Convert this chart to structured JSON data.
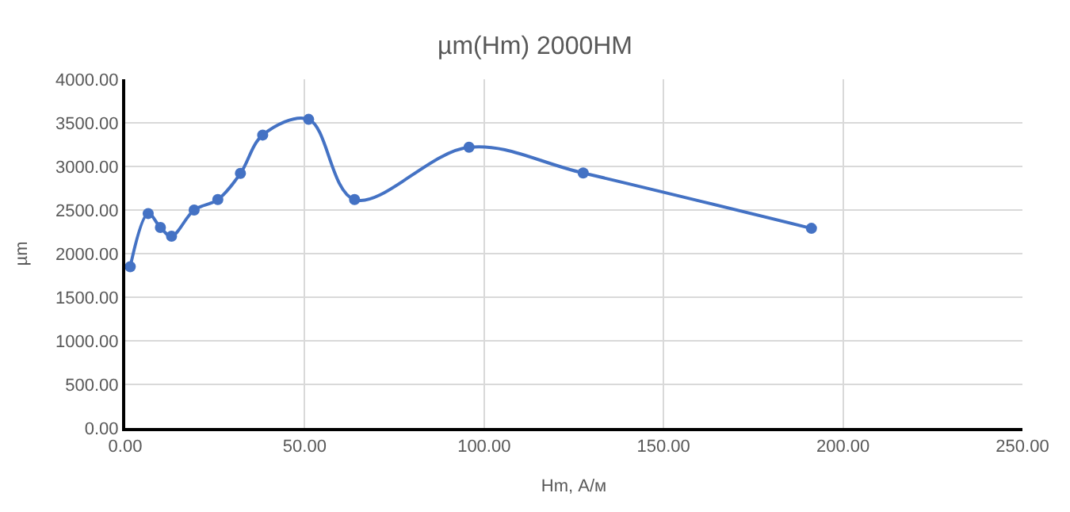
{
  "chart_data": {
    "type": "line",
    "title": "µm(Hm) 2000НМ",
    "xlabel": "Hm, А/м",
    "ylabel": "µm",
    "x": [
      1.4,
      6.4,
      9.8,
      12.9,
      19.2,
      25.8,
      32.1,
      38.3,
      51.1,
      63.9,
      95.8,
      127.6,
      191.2
    ],
    "series": [
      {
        "color": "#4472c4",
        "values": [
          1850,
          2460,
          2300,
          2200,
          2500,
          2620,
          2920,
          3360,
          3540,
          2620,
          3220,
          2925,
          2290
        ]
      }
    ],
    "xlim": [
      0,
      250
    ],
    "xticks": [
      {
        "value": 0,
        "label": "0.00"
      },
      {
        "value": 50,
        "label": "50.00"
      },
      {
        "value": 100,
        "label": "100.00"
      },
      {
        "value": 150,
        "label": "150.00"
      },
      {
        "value": 200,
        "label": "200.00"
      },
      {
        "value": 250,
        "label": "250.00"
      }
    ],
    "ylim": [
      0,
      4000
    ],
    "yticks": [
      {
        "value": 0,
        "label": "0.00"
      },
      {
        "value": 500,
        "label": "500.00"
      },
      {
        "value": 1000,
        "label": "1000.00"
      },
      {
        "value": 1500,
        "label": "1500.00"
      },
      {
        "value": 2000,
        "label": "2000.00"
      },
      {
        "value": 2500,
        "label": "2500.00"
      },
      {
        "value": 3000,
        "label": "3000.00"
      },
      {
        "value": 3500,
        "label": "3500.00"
      },
      {
        "value": 4000,
        "label": "4000.00"
      }
    ],
    "grid": true,
    "legend": false,
    "marker": "circle",
    "line_style": "solid"
  }
}
